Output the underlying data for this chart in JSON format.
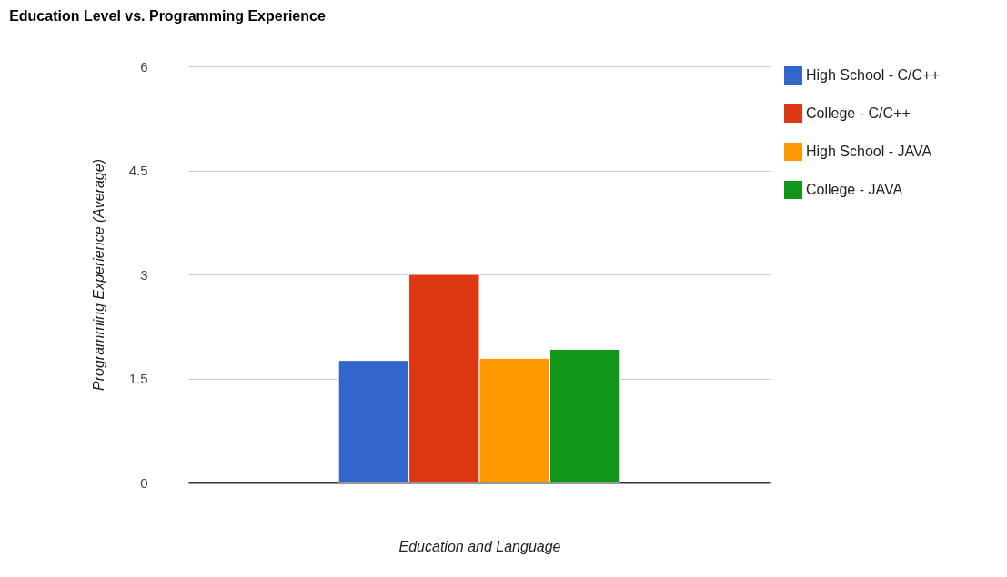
{
  "chart_data": {
    "type": "bar",
    "title": "Education Level vs. Programming Experience",
    "xlabel": "Education and Language",
    "ylabel": "Programming Experience (Average)",
    "categories": [
      null
    ],
    "series": [
      {
        "name": "High School - C/C++",
        "color": "#3366cc",
        "values": [
          1.76
        ]
      },
      {
        "name": "College - C/C++",
        "color": "#dc3912",
        "values": [
          3.0
        ]
      },
      {
        "name": "High School - JAVA",
        "color": "#ff9900",
        "values": [
          1.79
        ]
      },
      {
        "name": "College - JAVA",
        "color": "#109618",
        "values": [
          1.92
        ]
      }
    ],
    "ylim": [
      0,
      6
    ],
    "yticks": [
      0,
      1.5,
      3,
      4.5,
      6
    ],
    "grid": "y",
    "legend": "right"
  }
}
